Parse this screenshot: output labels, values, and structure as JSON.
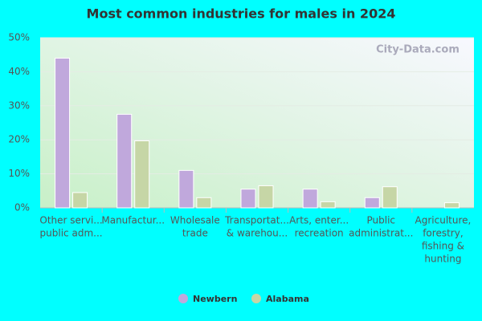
{
  "chart_data": {
    "type": "bar",
    "title": "Most common industries for males in 2024",
    "watermark": "City-Data.com",
    "categories": [
      [
        "Other servi...",
        "public adm..."
      ],
      [
        "Manufactur..."
      ],
      [
        "Wholesale",
        "trade"
      ],
      [
        "Transportat...",
        "& warehou..."
      ],
      [
        "Arts, enter...",
        "recreation"
      ],
      [
        "Public",
        "administrat..."
      ],
      [
        "Agriculture,",
        "forestry,",
        "fishing &",
        "hunting"
      ]
    ],
    "series": [
      {
        "name": "Newbern",
        "color": "#c0a8dc",
        "values": [
          44,
          27.5,
          11,
          5.5,
          5.5,
          3,
          0
        ]
      },
      {
        "name": "Alabama",
        "color": "#c6d6a6",
        "values": [
          4.5,
          19.7,
          3,
          6.5,
          1.8,
          6.2,
          1.5
        ]
      }
    ],
    "ylim": [
      0,
      50
    ],
    "yticks": [
      {
        "value": 0,
        "label": "0%"
      },
      {
        "value": 10,
        "label": "10%"
      },
      {
        "value": 20,
        "label": "20%"
      },
      {
        "value": 30,
        "label": "30%"
      },
      {
        "value": 40,
        "label": "40%"
      },
      {
        "value": 50,
        "label": "50%"
      }
    ],
    "grid": true
  }
}
